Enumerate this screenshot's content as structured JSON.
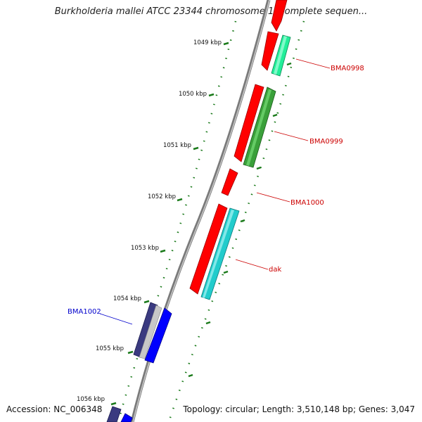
{
  "title": "Burkholderia mallei ATCC 23344 chromosome 1, complete sequen...",
  "accession": "Accession: NC_006348",
  "topology": "Topology: circular; Length: 3,510,148 bp; Genes: 3,047",
  "ticks": [
    {
      "label": "1049 kbp"
    },
    {
      "label": "1050 kbp"
    },
    {
      "label": "1051 kbp"
    },
    {
      "label": "1052 kbp"
    },
    {
      "label": "1053 kbp"
    },
    {
      "label": "1054 kbp"
    },
    {
      "label": "1055 kbp"
    },
    {
      "label": "1056 kbp"
    }
  ],
  "genes": [
    {
      "name": "BMA0998",
      "color": "#cc0000"
    },
    {
      "name": "BMA0999",
      "color": "#cc0000"
    },
    {
      "name": "BMA1000",
      "color": "#cc0000"
    },
    {
      "name": "dak",
      "color": "#cc0000"
    },
    {
      "name": "BMA1002",
      "color": "#0000cc"
    }
  ],
  "colors": {
    "backbone": "#808080",
    "tick": "#1a7a1a",
    "forward_gene": "#ff0000",
    "green_gene": "#3aa03a",
    "mint_gene": "#22ee99",
    "cyan_gene": "#22cccc",
    "navy_gene": "#3a3a80",
    "blue_gene": "#0000ff"
  }
}
